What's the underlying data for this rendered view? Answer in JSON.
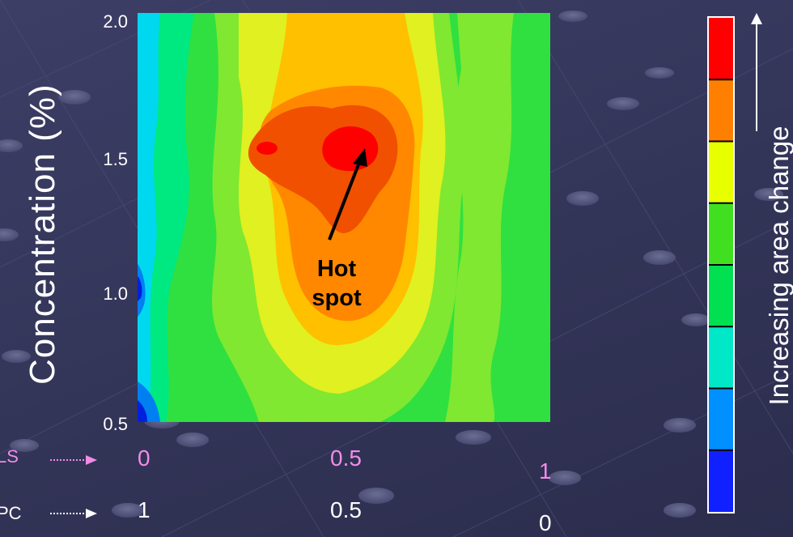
{
  "chart_data": {
    "type": "heatmap",
    "ylabel": "Concentration  (%)",
    "y_ticks": [
      "2.0",
      "1.5",
      "1.0",
      "0.5"
    ],
    "ylim": [
      0.5,
      2.0
    ],
    "x_axes": [
      {
        "name": "LS",
        "ticks": [
          "0",
          "0.5",
          "1"
        ],
        "color": "#f08ce8"
      },
      {
        "name": "PC",
        "ticks": [
          "1",
          "0.5",
          "0"
        ],
        "color": "#ffffff"
      }
    ],
    "annotation": {
      "lines": [
        "Hot",
        "spot"
      ],
      "x": 0.55,
      "y": 1.55
    },
    "colorbar": {
      "label": "Increasing area change",
      "colors": [
        "#ff0000",
        "#ff8000",
        "#e8ff00",
        "#40e020",
        "#00e050",
        "#00e8c8",
        "#0090ff",
        "#1020ff"
      ]
    },
    "levels_colors": [
      "#0020e0",
      "#0080f0",
      "#00d8f0",
      "#00e880",
      "#30e040",
      "#80e830",
      "#e0f020",
      "#ffc000",
      "#ff8800",
      "#f05000",
      "#ff0000"
    ]
  }
}
